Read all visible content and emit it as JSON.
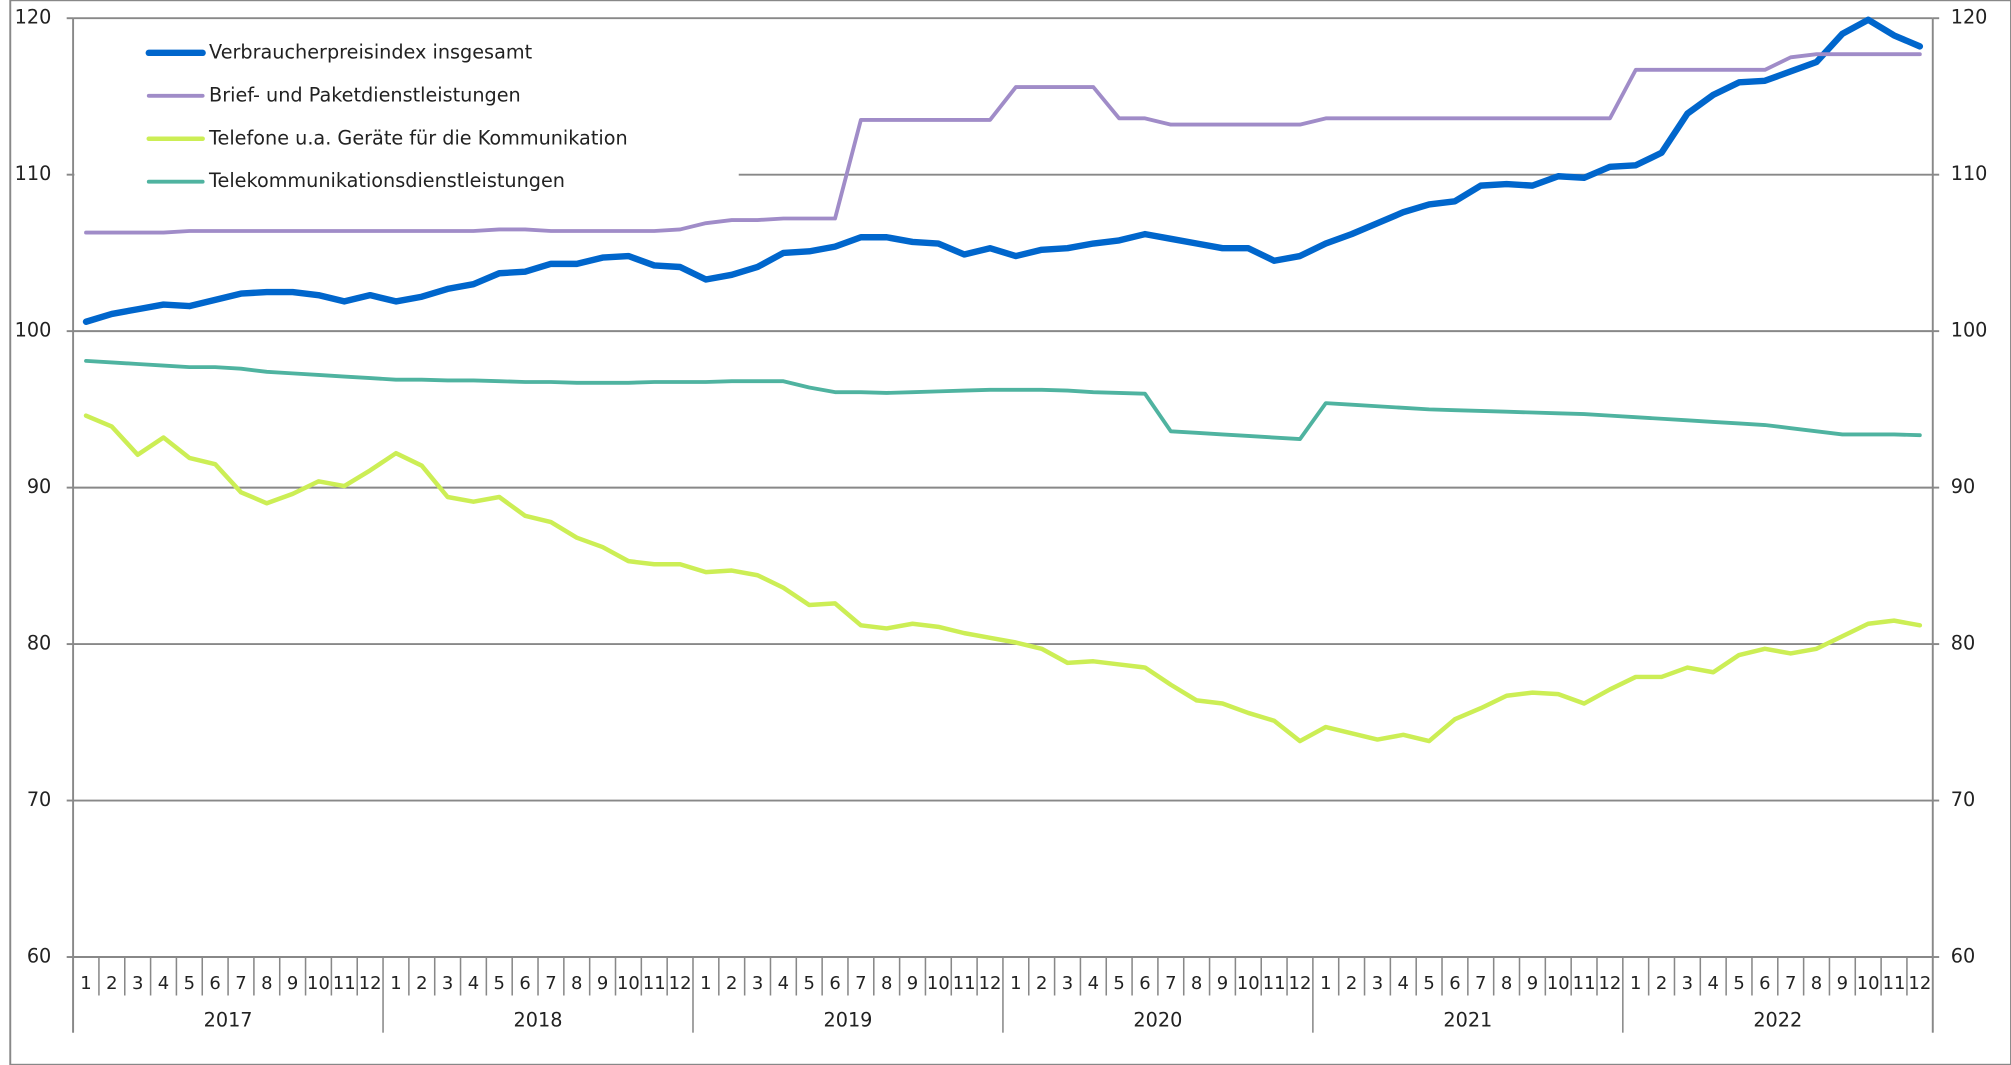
{
  "chart_data": {
    "type": "line",
    "categories": [
      "1",
      "2",
      "3",
      "4",
      "5",
      "6",
      "7",
      "8",
      "9",
      "10",
      "11",
      "12",
      "1",
      "2",
      "3",
      "4",
      "5",
      "6",
      "7",
      "8",
      "9",
      "10",
      "11",
      "12",
      "1",
      "2",
      "3",
      "4",
      "5",
      "6",
      "7",
      "8",
      "9",
      "10",
      "11",
      "12",
      "1",
      "2",
      "3",
      "4",
      "5",
      "6",
      "7",
      "8",
      "9",
      "10",
      "11",
      "12",
      "1",
      "2",
      "3",
      "4",
      "5",
      "6",
      "7",
      "8",
      "9",
      "10",
      "11",
      "12",
      "1",
      "2",
      "3",
      "4",
      "5",
      "6",
      "7",
      "8",
      "9",
      "10",
      "11",
      "12"
    ],
    "years": [
      "2017",
      "2018",
      "2019",
      "2020",
      "2021",
      "2022"
    ],
    "ylim": [
      60,
      120
    ],
    "yticks": [
      60,
      70,
      80,
      90,
      100,
      110,
      120
    ],
    "y2lim": [
      60,
      120
    ],
    "y2ticks": [
      60,
      70,
      80,
      90,
      100,
      110,
      120
    ],
    "grid": true,
    "legend": "top-left",
    "series": [
      {
        "name": "Verbraucherpreisindex insgesamt",
        "color": "#0066cc",
        "values": [
          100.6,
          101.1,
          101.4,
          101.7,
          101.6,
          102.0,
          102.4,
          102.5,
          102.5,
          102.3,
          101.9,
          102.3,
          101.9,
          102.2,
          102.7,
          103.0,
          103.7,
          103.8,
          104.3,
          104.3,
          104.7,
          104.8,
          104.2,
          104.1,
          103.3,
          103.6,
          104.1,
          105.0,
          105.1,
          105.4,
          106.0,
          106.0,
          105.7,
          105.6,
          104.9,
          105.3,
          104.8,
          105.2,
          105.3,
          105.6,
          105.8,
          106.2,
          105.9,
          105.6,
          105.3,
          105.3,
          104.5,
          104.8,
          105.6,
          106.2,
          106.9,
          107.6,
          108.1,
          108.3,
          109.3,
          109.4,
          109.3,
          109.9,
          109.8,
          110.5,
          110.6,
          111.4,
          113.9,
          115.1,
          115.9,
          116.0,
          116.6,
          117.2,
          119.0,
          119.9,
          118.9,
          118.2
        ]
      },
      {
        "name": "Brief- und Paketdienstleistungen",
        "color": "#a08cc8",
        "values": [
          106.3,
          106.3,
          106.3,
          106.3,
          106.4,
          106.4,
          106.4,
          106.4,
          106.4,
          106.4,
          106.4,
          106.4,
          106.4,
          106.4,
          106.4,
          106.4,
          106.5,
          106.5,
          106.4,
          106.4,
          106.4,
          106.4,
          106.4,
          106.5,
          106.9,
          107.1,
          107.1,
          107.2,
          107.2,
          107.2,
          113.5,
          113.5,
          113.5,
          113.5,
          113.5,
          113.5,
          115.6,
          115.6,
          115.6,
          115.6,
          113.6,
          113.6,
          113.2,
          113.2,
          113.2,
          113.2,
          113.2,
          113.2,
          113.6,
          113.6,
          113.6,
          113.6,
          113.6,
          113.6,
          113.6,
          113.6,
          113.6,
          113.6,
          113.6,
          113.6,
          116.7,
          116.7,
          116.7,
          116.7,
          116.7,
          116.7,
          117.5,
          117.7,
          117.7,
          117.7,
          117.7,
          117.7
        ]
      },
      {
        "name": "Telefone u.a. Geräte für die Kommunikation",
        "color": "#ccee55",
        "values": [
          94.6,
          93.9,
          92.1,
          93.2,
          91.9,
          91.5,
          89.7,
          89.0,
          89.6,
          90.4,
          90.1,
          91.1,
          92.2,
          91.4,
          89.4,
          89.1,
          89.4,
          88.2,
          87.8,
          86.8,
          86.2,
          85.3,
          85.1,
          85.1,
          84.6,
          84.7,
          84.4,
          83.6,
          82.5,
          82.6,
          81.2,
          81.0,
          81.3,
          81.1,
          80.7,
          80.4,
          80.1,
          79.7,
          78.8,
          78.9,
          78.7,
          78.5,
          77.4,
          76.4,
          76.2,
          75.6,
          75.1,
          73.8,
          74.7,
          74.3,
          73.9,
          74.2,
          73.8,
          75.2,
          75.9,
          76.7,
          76.9,
          76.8,
          76.2,
          77.1,
          77.9,
          77.9,
          78.5,
          78.2,
          79.3,
          79.7,
          79.4,
          79.7,
          80.5,
          81.3,
          81.5,
          81.2
        ]
      },
      {
        "name": "Telekommunikationsdienstleistungen",
        "color": "#4fb3a0",
        "values": [
          98.1,
          98.0,
          97.9,
          97.8,
          97.7,
          97.7,
          97.6,
          97.4,
          97.3,
          97.2,
          97.1,
          97.0,
          96.9,
          96.9,
          96.85,
          96.85,
          96.8,
          96.75,
          96.75,
          96.7,
          96.7,
          96.7,
          96.75,
          96.75,
          96.75,
          96.8,
          96.8,
          96.8,
          96.4,
          96.1,
          96.1,
          96.05,
          96.1,
          96.15,
          96.2,
          96.25,
          96.25,
          96.25,
          96.2,
          96.1,
          96.05,
          96.0,
          93.6,
          93.5,
          93.4,
          93.3,
          93.2,
          93.1,
          95.4,
          95.3,
          95.2,
          95.1,
          95.0,
          94.95,
          94.9,
          94.85,
          94.8,
          94.75,
          94.7,
          94.6,
          94.5,
          94.4,
          94.3,
          94.2,
          94.1,
          94.0,
          93.8,
          93.6,
          93.4,
          93.4,
          93.4,
          93.35
        ]
      }
    ]
  }
}
